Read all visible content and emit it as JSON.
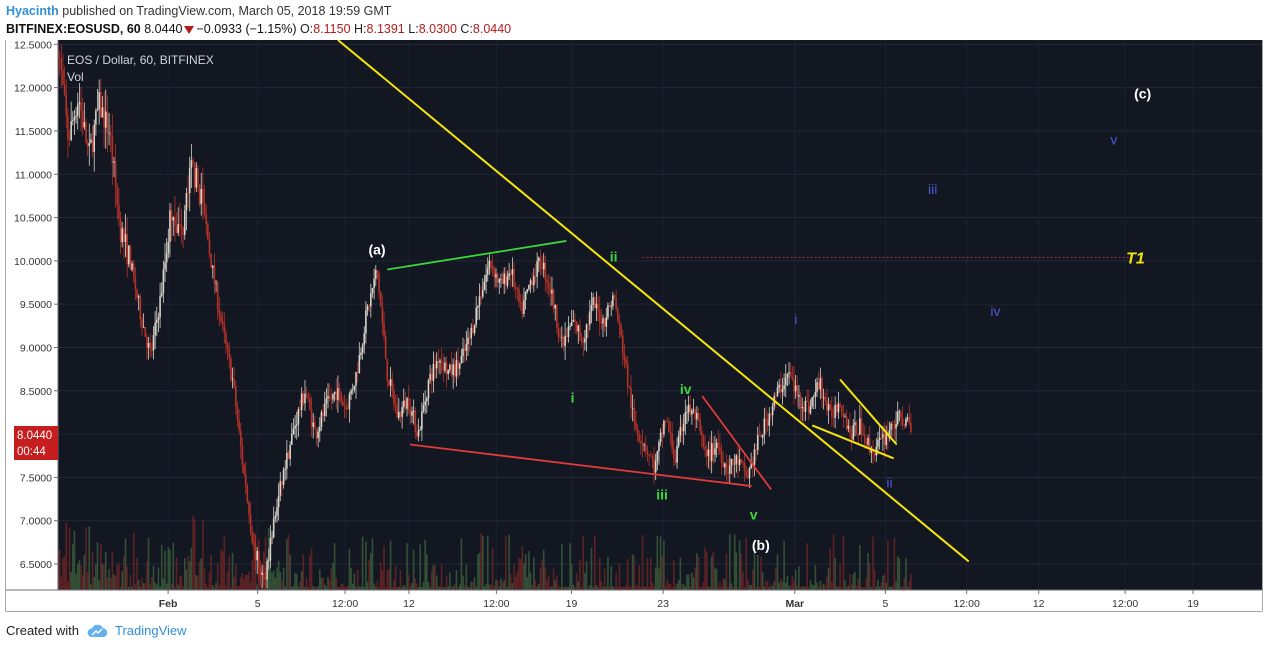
{
  "header": {
    "author": "Hyacinth",
    "published_text": "published on TradingView.com, March 05, 2018 19:59 GMT",
    "symbol_interval": "BITFINEX:EOSUSD, 60",
    "last": "8.0440",
    "change": "−0.0933 (−1.15%)",
    "o_label": "O:",
    "o_value": "8.1150",
    "h_label": "H:",
    "h_value": "8.1391",
    "l_label": "L:",
    "l_value": "8.0300",
    "c_label": "C:",
    "c_value": "8.0440"
  },
  "legend": {
    "title": "EOS / Dollar, 60, BITFINEX",
    "vol": "Vol"
  },
  "price_tag": {
    "price": "8.0440",
    "countdown": "00:44"
  },
  "footer": {
    "created": "Created with",
    "brand": "TradingView"
  },
  "colors": {
    "background": "#131722",
    "axis_bg": "#ffffff",
    "up": "#d8d4c8",
    "down": "#b83228",
    "trend": "#f5e50c",
    "green": "#3cd63c",
    "red": "#e23b3b",
    "blue": "#4a5ad8",
    "white": "#ffffff",
    "tag": "#c61e1e"
  },
  "chart_data": {
    "type": "candlestick",
    "ylim": [
      6.2,
      12.55
    ],
    "y_ticks": [
      12.5,
      12.0,
      11.5,
      11.0,
      10.5,
      10.0,
      9.5,
      9.0,
      8.5,
      8.0,
      7.5,
      7.0,
      6.5
    ],
    "y_tick_labels": [
      "12.5000",
      "12.0000",
      "11.5000",
      "11.0000",
      "10.5000",
      "10.0000",
      "9.5000",
      "9.0000",
      "8.5000",
      "8.0000",
      "7.5000",
      "7.0000",
      "6.5000"
    ],
    "x_tick_labels": [
      "Feb",
      "5",
      "12:00",
      "12",
      "12:00",
      "19",
      "23",
      "Mar",
      "5",
      "12:00",
      "12",
      "12:00",
      "19"
    ],
    "x_tick_bold": [
      true,
      false,
      false,
      false,
      false,
      false,
      false,
      true,
      false,
      false,
      false,
      false,
      false
    ],
    "price_path": [
      [
        0,
        12.5
      ],
      [
        1,
        11.4
      ],
      [
        2,
        11.9
      ],
      [
        3,
        11.2
      ],
      [
        4,
        11.8
      ],
      [
        5,
        11.5
      ],
      [
        6,
        10.4
      ],
      [
        7,
        10.0
      ],
      [
        8,
        9.4
      ],
      [
        9,
        8.9
      ],
      [
        10,
        9.6
      ],
      [
        11,
        10.6
      ],
      [
        12,
        10.3
      ],
      [
        13,
        11.1
      ],
      [
        14,
        10.7
      ],
      [
        15,
        9.9
      ],
      [
        16,
        9.2
      ],
      [
        17,
        8.6
      ],
      [
        18,
        7.6
      ],
      [
        19,
        6.7
      ],
      [
        20,
        6.3
      ],
      [
        21,
        7.0
      ],
      [
        22,
        7.6
      ],
      [
        23,
        8.1
      ],
      [
        24,
        8.5
      ],
      [
        25,
        8.0
      ],
      [
        26,
        8.3
      ],
      [
        27,
        8.5
      ],
      [
        28,
        8.3
      ],
      [
        29,
        8.7
      ],
      [
        30,
        9.4
      ],
      [
        31,
        9.9
      ],
      [
        32,
        8.7
      ],
      [
        33,
        8.2
      ],
      [
        34,
        8.4
      ],
      [
        35,
        8.0
      ],
      [
        36,
        8.6
      ],
      [
        37,
        8.9
      ],
      [
        38,
        8.7
      ],
      [
        39,
        8.8
      ],
      [
        40,
        9.1
      ],
      [
        41,
        9.6
      ],
      [
        42,
        10.0
      ],
      [
        43,
        9.7
      ],
      [
        44,
        9.9
      ],
      [
        45,
        9.4
      ],
      [
        46,
        9.8
      ],
      [
        47,
        10.0
      ],
      [
        48,
        9.6
      ],
      [
        49,
        9.0
      ],
      [
        50,
        9.3
      ],
      [
        51,
        9.1
      ],
      [
        52,
        9.5
      ],
      [
        53,
        9.3
      ],
      [
        54,
        9.6
      ],
      [
        55,
        8.9
      ],
      [
        56,
        8.1
      ],
      [
        57,
        7.9
      ],
      [
        58,
        7.6
      ],
      [
        59,
        8.2
      ],
      [
        60,
        7.7
      ],
      [
        61,
        8.3
      ],
      [
        62,
        8.2
      ],
      [
        63,
        7.7
      ],
      [
        64,
        7.9
      ],
      [
        65,
        7.6
      ],
      [
        66,
        7.7
      ],
      [
        67,
        7.5
      ],
      [
        68,
        7.9
      ],
      [
        69,
        8.2
      ],
      [
        70,
        8.5
      ],
      [
        71,
        8.7
      ],
      [
        72,
        8.4
      ],
      [
        73,
        8.3
      ],
      [
        74,
        8.6
      ],
      [
        75,
        8.2
      ],
      [
        76,
        8.4
      ],
      [
        77,
        8.0
      ],
      [
        78,
        8.1
      ],
      [
        79,
        7.8
      ],
      [
        80,
        7.9
      ],
      [
        81,
        8.1
      ],
      [
        82,
        8.2
      ],
      [
        83,
        8.04
      ]
    ],
    "annotations": [
      {
        "text": "(a)",
        "x": 31,
        "y": 10.13,
        "color": "white",
        "bold": true
      },
      {
        "text": "(b)",
        "x": 68.3,
        "y": 6.72,
        "color": "white",
        "bold": true
      },
      {
        "text": "(c)",
        "x": 105.4,
        "y": 11.93,
        "color": "white",
        "bold": true
      },
      {
        "text": "ii",
        "x": 54,
        "y": 10.05,
        "color": "green",
        "bold": true
      },
      {
        "text": "i",
        "x": 50,
        "y": 8.42,
        "color": "green",
        "bold": true
      },
      {
        "text": "iv",
        "x": 61,
        "y": 8.52,
        "color": "green",
        "bold": true
      },
      {
        "text": "iii",
        "x": 58.7,
        "y": 7.3,
        "color": "green",
        "bold": true
      },
      {
        "text": "v",
        "x": 67.6,
        "y": 7.07,
        "color": "green",
        "bold": true
      },
      {
        "text": "i",
        "x": 71.7,
        "y": 9.33,
        "color": "blue",
        "bold": false
      },
      {
        "text": "ii",
        "x": 80.8,
        "y": 7.44,
        "color": "blue",
        "bold": false
      },
      {
        "text": "iii",
        "x": 85,
        "y": 10.83,
        "color": "blue",
        "bold": false
      },
      {
        "text": "iv",
        "x": 91.1,
        "y": 9.42,
        "color": "blue",
        "bold": false
      },
      {
        "text": "v",
        "x": 102.6,
        "y": 11.4,
        "color": "blue",
        "bold": false
      },
      {
        "text": "T1",
        "x": 104.7,
        "y": 10.03,
        "color": "yellow",
        "bold": true
      }
    ],
    "trendlines": [
      {
        "color": "trend",
        "from": [
          27.2,
          12.55
        ],
        "to": [
          88.5,
          6.53
        ]
      },
      {
        "color": "trend",
        "from": [
          73.3,
          8.1
        ],
        "to": [
          81.2,
          7.72
        ]
      },
      {
        "color": "trend",
        "from": [
          76.0,
          8.63
        ],
        "to": [
          81.5,
          7.88
        ]
      },
      {
        "color": "green",
        "from": [
          32,
          9.9
        ],
        "to": [
          49.4,
          10.23
        ]
      },
      {
        "color": "red",
        "from": [
          34.2,
          7.88
        ],
        "to": [
          67.4,
          7.4
        ]
      },
      {
        "color": "red",
        "from": [
          62.6,
          8.44
        ],
        "to": [
          69.3,
          7.36
        ]
      }
    ],
    "target_line": {
      "y": 10.04,
      "from": 56.8,
      "to": 104.2
    }
  }
}
